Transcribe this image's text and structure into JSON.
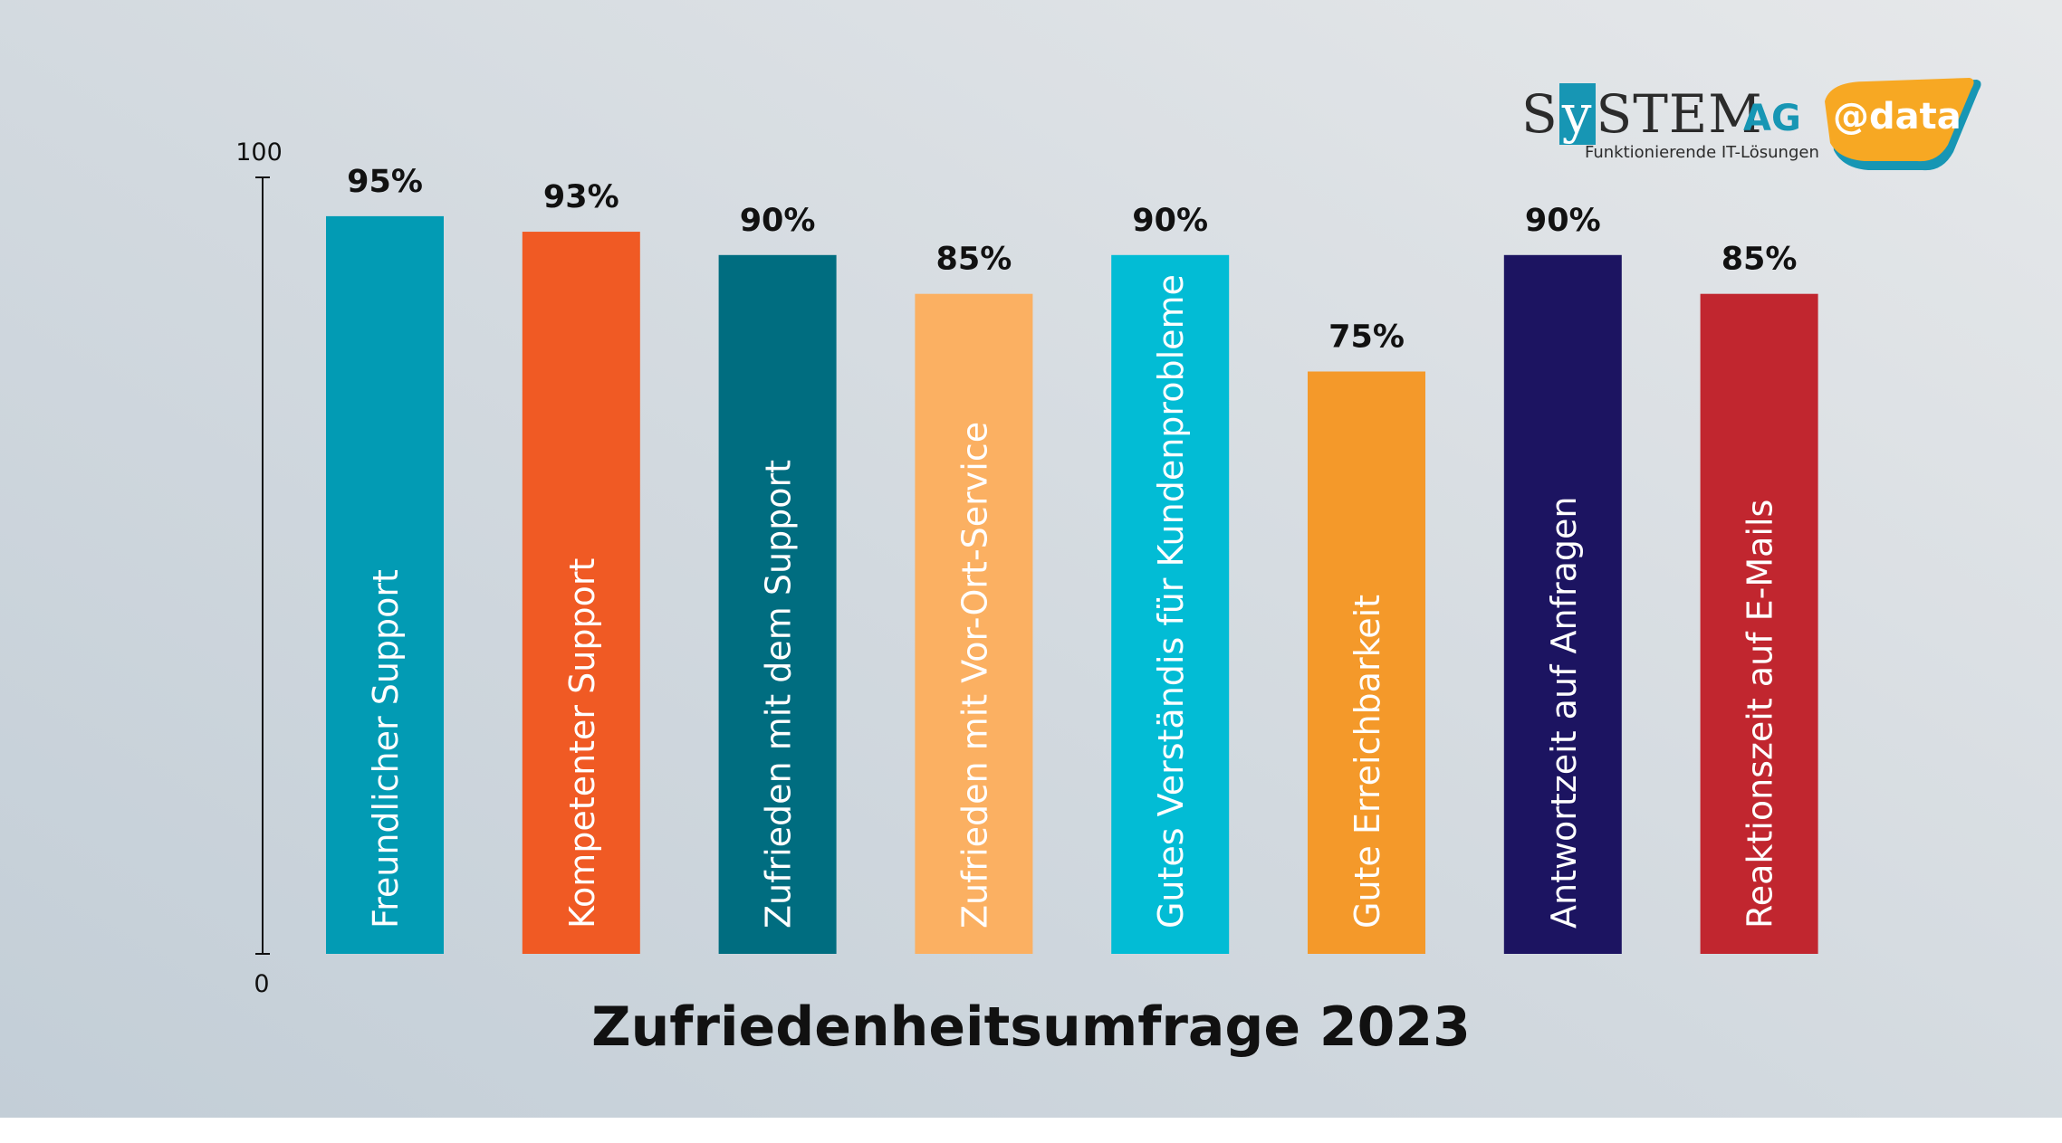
{
  "chart_data": {
    "type": "bar",
    "title": "Zufriedenheitsumfrage 2023",
    "ylim": [
      0,
      100
    ],
    "yticks": [
      "0",
      "100"
    ],
    "categories": [
      "Freundlicher Support",
      "Kompetenter Support",
      "Zufrieden mit dem Support",
      "Zufrieden mit Vor-Ort-Service",
      "Gutes Verständis für Kundenprobleme",
      "Gute Erreichbarkeit",
      "Antwortzeit auf Anfragen",
      "Reaktionszeit auf E-Mails"
    ],
    "values": [
      95,
      93,
      90,
      85,
      90,
      75,
      90,
      85
    ],
    "value_labels": [
      "95%",
      "93%",
      "90%",
      "85%",
      "90%",
      "75%",
      "90%",
      "85%"
    ],
    "colors": [
      "#029bb4",
      "#f05a24",
      "#006d80",
      "#fbb062",
      "#02bcd5",
      "#f4992a",
      "#1c1461",
      "#c1262f"
    ],
    "grid": false,
    "legend": "none"
  },
  "logo": {
    "name_prefix": "S",
    "name_highlight": "y",
    "name_suffix": "STEM",
    "suffix": "AG",
    "badge": "@data",
    "tagline": "Funktionierende IT-Lösungen",
    "colors": {
      "teal": "#1796b4",
      "orange": "#f7a823",
      "dark": "#2b2b2b"
    }
  }
}
